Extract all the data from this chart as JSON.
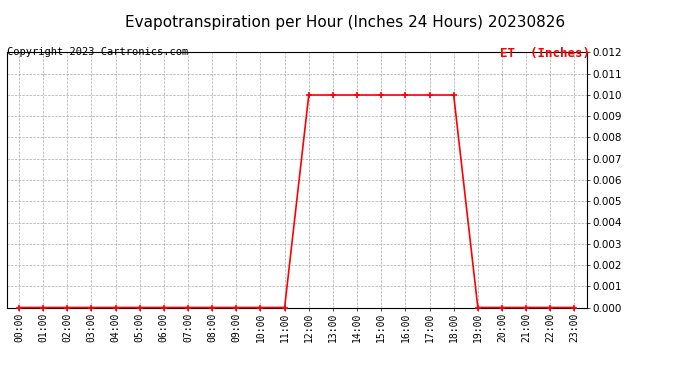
{
  "title": "Evapotranspiration per Hour (Inches 24 Hours) 20230826",
  "copyright": "Copyright 2023 Cartronics.com",
  "legend_label": "ET  (Inches)",
  "hours": [
    0,
    1,
    2,
    3,
    4,
    5,
    6,
    7,
    8,
    9,
    10,
    11,
    12,
    13,
    14,
    15,
    16,
    17,
    18,
    19,
    20,
    21,
    22,
    23
  ],
  "et_values": [
    0.0,
    0.0,
    0.0,
    0.0,
    0.0,
    0.0,
    0.0,
    0.0,
    0.0,
    0.0,
    0.0,
    0.0,
    0.01,
    0.01,
    0.01,
    0.01,
    0.01,
    0.01,
    0.01,
    0.0,
    0.0,
    0.0,
    0.0,
    0.0
  ],
  "line_color": "#ff0000",
  "marker": "+",
  "marker_size": 5,
  "marker_color": "#ff0000",
  "background_color": "#ffffff",
  "grid_color": "#aaaaaa",
  "ylim": [
    0.0,
    0.012
  ],
  "yticks": [
    0.0,
    0.001,
    0.002,
    0.003,
    0.004,
    0.005,
    0.006,
    0.007,
    0.008,
    0.009,
    0.01,
    0.011,
    0.012
  ],
  "title_fontsize": 11,
  "copyright_fontsize": 7.5,
  "legend_fontsize": 9,
  "line_width": 1.2,
  "fig_width": 6.9,
  "fig_height": 3.75,
  "dpi": 100
}
